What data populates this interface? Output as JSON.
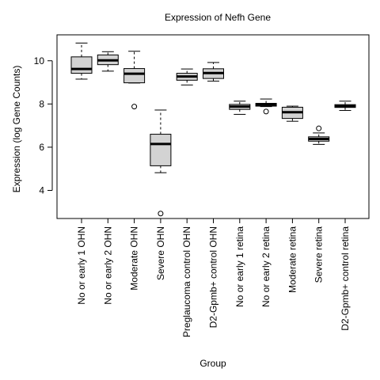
{
  "chart_data": {
    "type": "boxplot",
    "title": "Expression of  Nefh Gene",
    "xlabel": "Group",
    "ylabel": "Expression (log Gene Counts)",
    "ylim": [
      2.7,
      11.2
    ],
    "yticks": [
      4,
      6,
      8,
      10
    ],
    "grid": false,
    "legend": "none",
    "box_fill": "#d3d3d3",
    "categories": [
      "No or early 1 OHN",
      "No or early 2 OHN",
      "Moderate OHN",
      "Severe OHN",
      "Preglaucoma control OHN",
      "D2-Gpmb+ control OHN",
      "No or early 1 retina",
      "No or early 2 retina",
      "Moderate retina",
      "Severe retina",
      "D2-Gpmb+ control retina"
    ],
    "boxes": [
      {
        "min": 9.15,
        "q1": 9.42,
        "median": 9.62,
        "q3": 10.18,
        "max": 10.82,
        "outliers": []
      },
      {
        "min": 9.52,
        "q1": 9.82,
        "median": 10.02,
        "q3": 10.27,
        "max": 10.42,
        "outliers": []
      },
      {
        "min": 8.97,
        "q1": 8.98,
        "median": 9.4,
        "q3": 9.64,
        "max": 10.44,
        "outliers": [
          7.88
        ]
      },
      {
        "min": 4.82,
        "q1": 5.14,
        "median": 6.15,
        "q3": 6.6,
        "max": 7.72,
        "outliers": [
          2.93
        ]
      },
      {
        "min": 8.88,
        "q1": 9.1,
        "median": 9.27,
        "q3": 9.42,
        "max": 9.62,
        "outliers": []
      },
      {
        "min": 9.06,
        "q1": 9.18,
        "median": 9.43,
        "q3": 9.63,
        "max": 9.92,
        "outliers": []
      },
      {
        "min": 7.52,
        "q1": 7.75,
        "median": 7.88,
        "q3": 7.98,
        "max": 8.13,
        "outliers": []
      },
      {
        "min": 7.88,
        "q1": 7.9,
        "median": 7.97,
        "q3": 8.03,
        "max": 8.23,
        "outliers": [
          7.65
        ]
      },
      {
        "min": 7.2,
        "q1": 7.33,
        "median": 7.62,
        "q3": 7.85,
        "max": 7.9,
        "outliers": []
      },
      {
        "min": 6.13,
        "q1": 6.28,
        "median": 6.38,
        "q3": 6.48,
        "max": 6.66,
        "outliers": [
          6.87
        ]
      },
      {
        "min": 7.7,
        "q1": 7.84,
        "median": 7.9,
        "q3": 7.97,
        "max": 8.13,
        "outliers": []
      }
    ]
  }
}
